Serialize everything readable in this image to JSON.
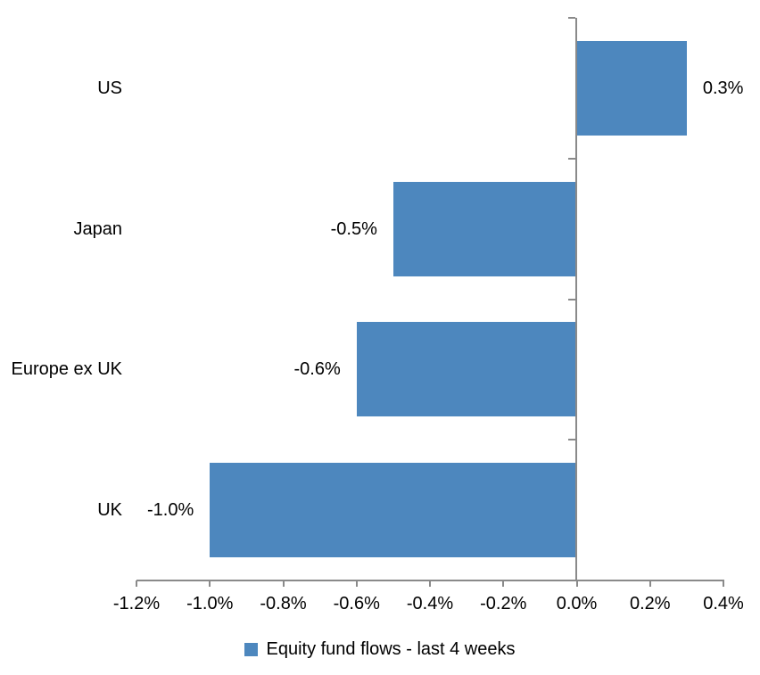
{
  "chart_data": {
    "type": "bar",
    "orientation": "horizontal",
    "title": "",
    "categories": [
      "US",
      "Japan",
      "Europe ex UK",
      "UK"
    ],
    "values": [
      0.3,
      -0.5,
      -0.6,
      -1.0
    ],
    "data_labels": [
      "0.3%",
      "-0.5%",
      "-0.6%",
      "-1.0%"
    ],
    "xlim": [
      -1.2,
      0.4
    ],
    "x_ticks": [
      {
        "value": -1.2,
        "label": "-1.2%"
      },
      {
        "value": -1.0,
        "label": "-1.0%"
      },
      {
        "value": -0.8,
        "label": "-0.8%"
      },
      {
        "value": -0.6,
        "label": "-0.6%"
      },
      {
        "value": -0.4,
        "label": "-0.4%"
      },
      {
        "value": -0.2,
        "label": "-0.2%"
      },
      {
        "value": 0.0,
        "label": "0.0%"
      },
      {
        "value": 0.2,
        "label": "0.2%"
      },
      {
        "value": 0.4,
        "label": "0.4%"
      }
    ],
    "grid": false,
    "legend": {
      "label": "Equity fund flows - last 4 weeks",
      "position": "bottom"
    },
    "colors": {
      "bar": "#4d87be",
      "axis": "#8a8a8a",
      "text": "#000000",
      "background": "#ffffff"
    }
  }
}
